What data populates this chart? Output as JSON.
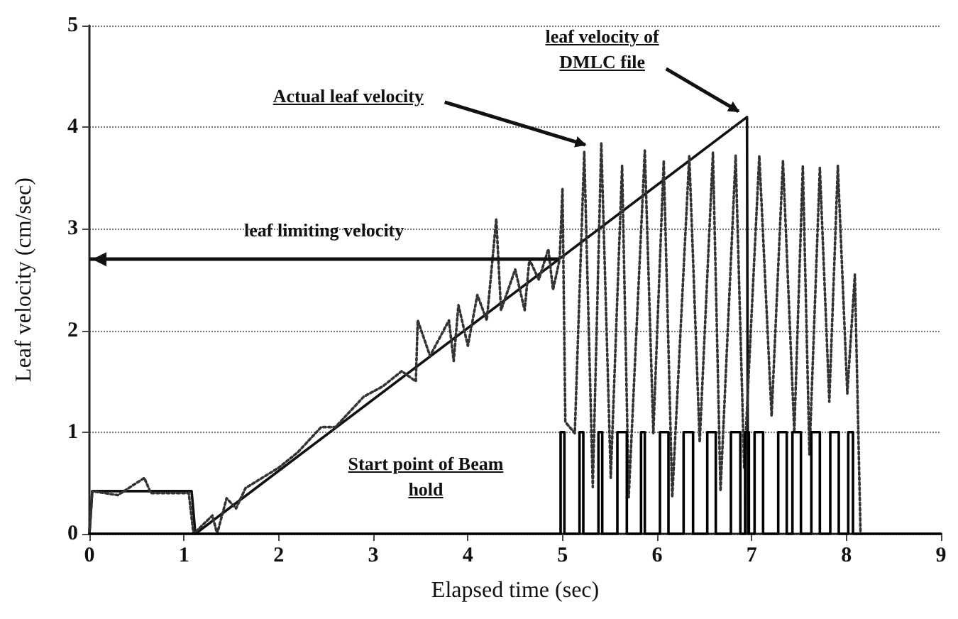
{
  "chart_data": {
    "type": "line",
    "xlabel": "Elapsed time (sec)",
    "ylabel": "Leaf velocity (cm/sec)",
    "xlim": [
      0,
      9
    ],
    "xticks": [
      0,
      1,
      2,
      3,
      4,
      5,
      6,
      7,
      8,
      9
    ],
    "ylim": [
      0,
      5
    ],
    "yticks": [
      0,
      1,
      2,
      3,
      4,
      5
    ],
    "grid": "y",
    "marker": "none",
    "ref_lines": [
      {
        "axis": "y",
        "value": 2.7,
        "label": "leaf limiting velocity",
        "color": "#111111"
      }
    ],
    "annotations": [
      {
        "text": "Actual leaf velocity",
        "x": 5.3,
        "y": 3.8
      },
      {
        "text": "leaf velocity of DMLC file",
        "x": 6.95,
        "y": 4.1
      },
      "Start point of Beam hold"
    ],
    "series": [
      {
        "color": "#111111",
        "line_style": "solid",
        "x": [
          0,
          0.03,
          1.08,
          1.12,
          6.95,
          6.96
        ],
        "values": [
          0,
          0.42,
          0.42,
          0,
          4.1,
          0
        ]
      },
      {
        "color": "#333333",
        "line_style": "dotted",
        "x": [
          0,
          0.03,
          0.3,
          0.58,
          0.65,
          1.05,
          1.1,
          1.3,
          1.35,
          1.45,
          1.55,
          1.65,
          2,
          2.2,
          2.45,
          2.6,
          2.9,
          3.1,
          3.3,
          3.45,
          3.47,
          3.6,
          3.8,
          3.85,
          3.9,
          4.0,
          4.1,
          4.2,
          4.3,
          4.35,
          4.5,
          4.6,
          4.65,
          4.75,
          4.85,
          4.9,
          4.97,
          5.0,
          5.03,
          5.13,
          5.23,
          5.32,
          5.41,
          5.51,
          5.63,
          5.7,
          5.87,
          5.96,
          6.07,
          6.16,
          6.34,
          6.45,
          6.59,
          6.67,
          6.83,
          6.92,
          7.08,
          7.21,
          7.33,
          7.45,
          7.54,
          7.61,
          7.72,
          7.82,
          7.91,
          8.01,
          8.09,
          8.15
        ],
        "values": [
          0,
          0.42,
          0.38,
          0.55,
          0.4,
          0.4,
          0,
          0.18,
          0,
          0.35,
          0.25,
          0.45,
          0.65,
          0.8,
          1.05,
          1.05,
          1.35,
          1.45,
          1.6,
          1.5,
          2.1,
          1.75,
          2.1,
          1.7,
          2.25,
          1.85,
          2.35,
          2.1,
          3.1,
          2.2,
          2.6,
          2.2,
          2.7,
          2.5,
          2.8,
          2.4,
          2.7,
          3.4,
          1.1,
          0.99,
          3.76,
          0.46,
          3.85,
          0.55,
          3.62,
          0.36,
          3.77,
          0.99,
          3.67,
          0.36,
          3.72,
          0.9,
          3.75,
          0.42,
          3.72,
          0.65,
          3.72,
          1.16,
          3.67,
          1.0,
          3.62,
          0.78,
          3.6,
          1.3,
          3.62,
          1.38,
          2.55,
          0
        ]
      },
      {
        "color": "#000000",
        "line_style": "solid",
        "x": [
          0,
          4.98,
          4.98,
          5.02,
          5.02,
          5.18,
          5.18,
          5.22,
          5.22,
          5.38,
          5.38,
          5.42,
          5.42,
          5.58,
          5.58,
          5.68,
          5.68,
          5.83,
          5.83,
          5.87,
          5.87,
          6.03,
          6.03,
          6.12,
          6.12,
          6.28,
          6.28,
          6.38,
          6.38,
          6.53,
          6.53,
          6.62,
          6.62,
          6.78,
          6.78,
          6.88,
          6.88,
          6.93,
          6.93,
          6.97,
          6.97,
          7.03,
          7.03,
          7.12,
          7.12,
          7.28,
          7.28,
          7.37,
          7.37,
          7.43,
          7.43,
          7.52,
          7.52,
          7.63,
          7.63,
          7.72,
          7.72,
          7.83,
          7.83,
          7.92,
          7.92,
          8.02,
          8.02,
          8.07,
          8.07,
          9
        ],
        "values": [
          0,
          0,
          1,
          1,
          0,
          0,
          1,
          1,
          0,
          0,
          1,
          1,
          0,
          0,
          1,
          1,
          0,
          0,
          1,
          1,
          0,
          0,
          1,
          1,
          0,
          0,
          1,
          1,
          0,
          0,
          1,
          1,
          0,
          0,
          1,
          1,
          0,
          0,
          1,
          1,
          0,
          0,
          1,
          1,
          0,
          0,
          1,
          1,
          0,
          0,
          1,
          1,
          0,
          0,
          1,
          1,
          0,
          0,
          1,
          1,
          0,
          0,
          1,
          1,
          0,
          0
        ]
      }
    ]
  }
}
